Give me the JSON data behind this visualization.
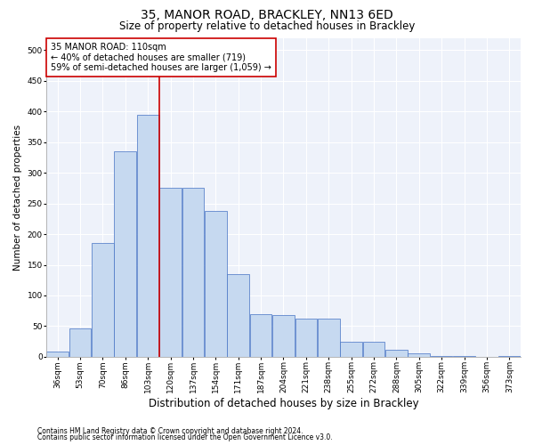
{
  "title": "35, MANOR ROAD, BRACKLEY, NN13 6ED",
  "subtitle": "Size of property relative to detached houses in Brackley",
  "xlabel": "Distribution of detached houses by size in Brackley",
  "ylabel": "Number of detached properties",
  "categories": [
    "36sqm",
    "53sqm",
    "70sqm",
    "86sqm",
    "103sqm",
    "120sqm",
    "137sqm",
    "154sqm",
    "171sqm",
    "187sqm",
    "204sqm",
    "221sqm",
    "238sqm",
    "255sqm",
    "272sqm",
    "288sqm",
    "305sqm",
    "322sqm",
    "339sqm",
    "356sqm",
    "373sqm"
  ],
  "values": [
    8,
    46,
    185,
    335,
    395,
    275,
    275,
    238,
    135,
    70,
    68,
    62,
    62,
    25,
    25,
    12,
    5,
    2,
    1,
    0,
    1
  ],
  "bar_color": "#c6d9f0",
  "bar_edge_color": "#4472c4",
  "vline_color": "#cc0000",
  "vline_x": 4.5,
  "annotation_text": "35 MANOR ROAD: 110sqm\n← 40% of detached houses are smaller (719)\n59% of semi-detached houses are larger (1,059) →",
  "annotation_box_color": "#ffffff",
  "annotation_box_edge_color": "#cc0000",
  "ylim": [
    0,
    520
  ],
  "yticks": [
    0,
    50,
    100,
    150,
    200,
    250,
    300,
    350,
    400,
    450,
    500
  ],
  "background_color": "#eef2fa",
  "grid_color": "#ffffff",
  "footer_line1": "Contains HM Land Registry data © Crown copyright and database right 2024.",
  "footer_line2": "Contains public sector information licensed under the Open Government Licence v3.0.",
  "title_fontsize": 10,
  "subtitle_fontsize": 8.5,
  "xlabel_fontsize": 8.5,
  "ylabel_fontsize": 7.5,
  "tick_fontsize": 6.5,
  "annotation_fontsize": 7,
  "footer_fontsize": 5.5
}
